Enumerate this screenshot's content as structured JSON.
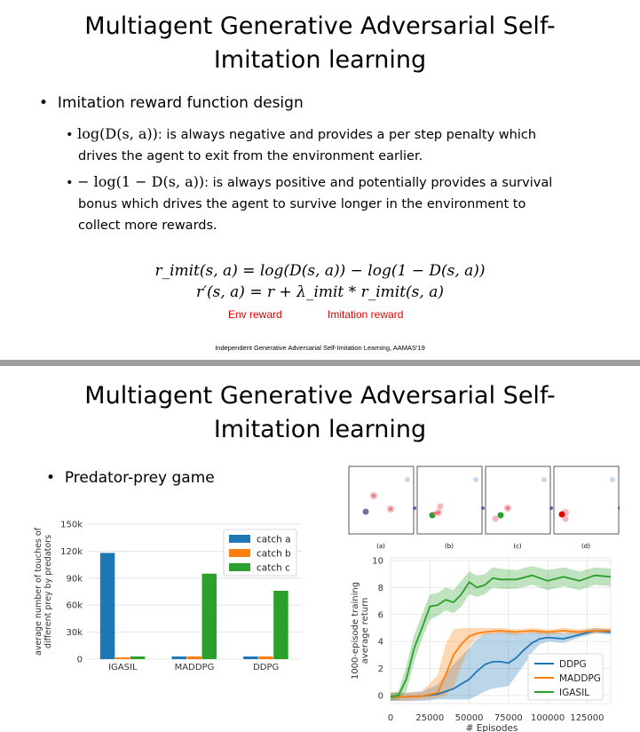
{
  "slide1": {
    "title_line1": "Multiagent Generative Adversarial Self-",
    "title_line2": "Imitation learning",
    "bullet_main": "Imitation reward function design",
    "sub1_math": "log(D(s, a))",
    "sub1_text_a": ": is always negative and provides a per step penalty which",
    "sub1_text_b": "drives the agent to exit from the environment earlier.",
    "sub2_math": "− log(1 − D(s, a))",
    "sub2_text_a": ": is always positive and potentially provides a survival",
    "sub2_text_b": "bonus which drives the agent to survive longer in the environment to",
    "sub2_text_c": "collect more rewards.",
    "eq1": "r_imit(s, a) = log(D(s, a)) − log(1 − D(s, a))",
    "eq2": "r′(s, a) = r + λ_imit * r_imit(s, a)",
    "env_reward": "Env reward",
    "imitation_reward": "Imitation reward",
    "citation": "Independent Generative Adversarial Self-Imitation Learning, AAMAS'19"
  },
  "slide2": {
    "title_line1": "Multiagent Generative Adversarial Self-",
    "title_line2": "Imitation learning",
    "bullet_main": "Predator-prey game",
    "panel_labels": [
      "(a)",
      "(b)",
      "(c)",
      "(d)"
    ]
  },
  "colors": {
    "blue": "#1f77b4",
    "orange": "#ff7f0e",
    "green": "#2ca02c",
    "red_text": "#e00000",
    "divider": "#9e9e9e"
  },
  "chart_data": [
    {
      "type": "bar",
      "categories": [
        "IGASIL",
        "MADDPG",
        "DDPG"
      ],
      "series": [
        {
          "name": "catch a",
          "values": [
            118000,
            3000,
            3000
          ]
        },
        {
          "name": "catch b",
          "values": [
            2000,
            3000,
            3000
          ]
        },
        {
          "name": "catch c",
          "values": [
            3000,
            95000,
            76000
          ]
        }
      ],
      "ylabel_line1": "average number of touches of",
      "ylabel_line2": "different prey by predators",
      "yticks": [
        "0",
        "30k",
        "60k",
        "90k",
        "120k",
        "150k"
      ],
      "ylim": [
        0,
        150000
      ],
      "legend": "top-right",
      "grid": true
    },
    {
      "type": "line",
      "xlabel": "# Episodes",
      "ylabel_line1": "1000-episode training",
      "ylabel_line2": "average return",
      "xticks": [
        "0",
        "25000",
        "50000",
        "75000",
        "100000",
        "125000"
      ],
      "yticks": [
        "0",
        "2",
        "4",
        "6",
        "8",
        "10"
      ],
      "xlim": [
        0,
        140000
      ],
      "ylim": [
        -0.6,
        10.2
      ],
      "legend": "bottom-right",
      "series": [
        {
          "name": "DDPG",
          "x": [
            0,
            10000,
            20000,
            30000,
            40000,
            50000,
            55000,
            60000,
            65000,
            70000,
            75000,
            80000,
            85000,
            90000,
            95000,
            100000,
            110000,
            120000,
            130000,
            140000
          ],
          "y": [
            -0.1,
            -0.1,
            -0.05,
            0.1,
            0.5,
            1.2,
            1.8,
            2.3,
            2.5,
            2.5,
            2.4,
            2.8,
            3.4,
            3.9,
            4.2,
            4.3,
            4.2,
            4.5,
            4.8,
            4.7
          ],
          "lower": [
            -0.4,
            -0.4,
            -0.4,
            -0.3,
            -0.3,
            -0.3,
            0.0,
            0.3,
            0.5,
            0.6,
            0.7,
            1.5,
            2.3,
            3.2,
            3.8,
            4.0,
            3.9,
            4.3,
            4.6,
            4.5
          ],
          "upper": [
            0.2,
            0.2,
            0.3,
            0.8,
            2.3,
            3.5,
            4.2,
            4.6,
            4.6,
            4.7,
            4.7,
            4.6,
            4.6,
            4.7,
            4.7,
            4.7,
            4.6,
            4.8,
            5.0,
            4.9
          ]
        },
        {
          "name": "MADDPG",
          "x": [
            0,
            10000,
            20000,
            30000,
            35000,
            40000,
            45000,
            50000,
            55000,
            60000,
            70000,
            80000,
            90000,
            100000,
            110000,
            120000,
            130000,
            140000
          ],
          "y": [
            -0.1,
            -0.1,
            -0.05,
            0.2,
            1.5,
            3.0,
            3.8,
            4.4,
            4.6,
            4.7,
            4.8,
            4.7,
            4.8,
            4.7,
            4.8,
            4.7,
            4.8,
            4.8
          ],
          "lower": [
            -0.4,
            -0.4,
            -0.3,
            -0.2,
            0.0,
            0.6,
            2.2,
            3.6,
            4.3,
            4.5,
            4.6,
            4.5,
            4.6,
            4.5,
            4.6,
            4.5,
            4.6,
            4.6
          ],
          "upper": [
            0.2,
            0.2,
            0.3,
            1.5,
            3.8,
            4.9,
            5.0,
            5.0,
            5.0,
            5.0,
            5.0,
            4.9,
            5.0,
            4.9,
            5.0,
            4.9,
            5.0,
            5.0
          ]
        },
        {
          "name": "IGASIL",
          "x": [
            0,
            5000,
            10000,
            15000,
            20000,
            25000,
            30000,
            35000,
            40000,
            45000,
            50000,
            55000,
            60000,
            65000,
            70000,
            80000,
            90000,
            100000,
            110000,
            120000,
            130000,
            140000
          ],
          "y": [
            -0.1,
            0.0,
            1.2,
            3.5,
            5.0,
            6.6,
            6.7,
            7.1,
            6.9,
            7.5,
            8.4,
            8.0,
            8.2,
            8.7,
            8.6,
            8.6,
            8.9,
            8.5,
            8.8,
            8.5,
            8.9,
            8.8
          ],
          "lower": [
            -0.4,
            -0.3,
            0.3,
            2.5,
            4.2,
            5.6,
            5.9,
            6.3,
            6.1,
            6.6,
            7.5,
            7.3,
            7.5,
            8.0,
            7.9,
            7.9,
            8.2,
            7.8,
            8.1,
            7.8,
            8.2,
            8.1
          ],
          "upper": [
            0.2,
            0.3,
            2.2,
            4.5,
            6.0,
            7.5,
            7.6,
            8.0,
            7.8,
            8.5,
            9.2,
            8.9,
            9.0,
            9.5,
            9.4,
            9.3,
            9.6,
            9.3,
            9.5,
            9.2,
            9.5,
            9.4
          ]
        }
      ]
    }
  ]
}
